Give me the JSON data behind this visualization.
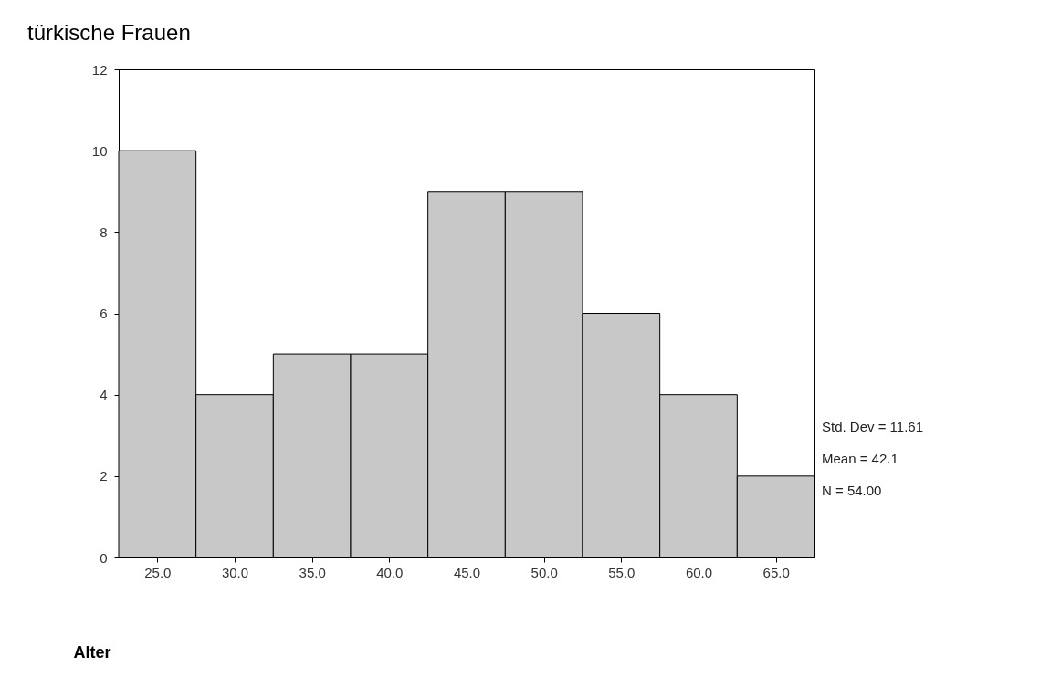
{
  "chart_data": {
    "type": "histogram",
    "title": "türkische Frauen",
    "xlabel": "Alter",
    "bins": [
      22.5,
      27.5,
      32.5,
      37.5,
      42.5,
      47.5,
      52.5,
      57.5,
      62.5,
      67.5
    ],
    "values": [
      10,
      4,
      5,
      5,
      9,
      9,
      6,
      4,
      2
    ],
    "color": "#c8c8c8",
    "xlim": [
      22.5,
      67.5
    ],
    "xticks": [
      {
        "value": 25,
        "label": "25.0"
      },
      {
        "value": 30,
        "label": "30.0"
      },
      {
        "value": 35,
        "label": "35.0"
      },
      {
        "value": 40,
        "label": "40.0"
      },
      {
        "value": 45,
        "label": "45.0"
      },
      {
        "value": 50,
        "label": "50.0"
      },
      {
        "value": 55,
        "label": "55.0"
      },
      {
        "value": 60,
        "label": "60.0"
      },
      {
        "value": 65,
        "label": "65.0"
      }
    ],
    "ylim": [
      0,
      12
    ],
    "yticks": [
      0,
      2,
      4,
      6,
      8,
      10,
      12
    ],
    "grid": false,
    "annotations": [
      "Std. Dev = 11.61",
      "Mean = 42.1",
      "N = 54.00"
    ]
  }
}
